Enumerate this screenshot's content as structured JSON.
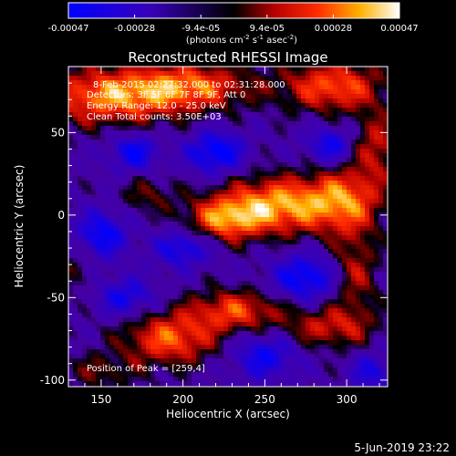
{
  "chart_data": {
    "type": "heatmap",
    "title": "Reconstructed RHESSI Image",
    "xlabel": "Heliocentric X (arcsec)",
    "ylabel": "Heliocentric Y (arcsec)",
    "xlim": [
      130,
      325
    ],
    "ylim": [
      -104,
      90
    ],
    "xticks": [
      150,
      200,
      250,
      300
    ],
    "yticks": [
      -100,
      -50,
      0,
      50
    ],
    "colorbar": {
      "ticks": [
        "-0.00047",
        "-0.00028",
        "-9.4e-05",
        "9.4e-05",
        "0.00028",
        "0.00047"
      ],
      "range": [
        -0.00047,
        0.00047
      ],
      "label_parts": [
        "(photons cm",
        "-2",
        " s",
        "-1",
        " asec",
        "-2",
        ")"
      ]
    },
    "annotations": [
      "8-Feb-2015 02:27:32.000 to 02:31:28.000",
      "Detectors: 3F 5F 6F 7F 8F 9F, Att 0",
      "Energy Range: 12.0 - 25.0 keV",
      "Clean    Total counts: 3.50E+03"
    ],
    "peak_label": "Position of Peak = [259,4]",
    "peak": [
      259,
      4
    ],
    "sources": [
      {
        "x": 155,
        "y": 72,
        "amp": 0.00042,
        "sx": 30,
        "sy": 12
      },
      {
        "x": 205,
        "y": 78,
        "amp": 0.00036,
        "sx": 26,
        "sy": 10
      },
      {
        "x": 292,
        "y": 78,
        "amp": 0.00038,
        "sx": 22,
        "sy": 11
      },
      {
        "x": 318,
        "y": 42,
        "amp": 0.00026,
        "sx": 10,
        "sy": 14
      },
      {
        "x": 259,
        "y": 6,
        "amp": 0.00047,
        "sx": 26,
        "sy": 12
      },
      {
        "x": 225,
        "y": -3,
        "amp": 0.00036,
        "sx": 16,
        "sy": 9
      },
      {
        "x": 300,
        "y": 10,
        "amp": 0.00032,
        "sx": 16,
        "sy": 14
      },
      {
        "x": 178,
        "y": 12,
        "amp": 0.00016,
        "sx": 12,
        "sy": 8
      },
      {
        "x": 305,
        "y": -35,
        "amp": 0.00024,
        "sx": 10,
        "sy": 20
      },
      {
        "x": 288,
        "y": -68,
        "amp": 0.00026,
        "sx": 20,
        "sy": 9
      },
      {
        "x": 232,
        "y": -58,
        "amp": 0.00034,
        "sx": 20,
        "sy": 9
      },
      {
        "x": 192,
        "y": -75,
        "amp": 0.00038,
        "sx": 20,
        "sy": 11
      },
      {
        "x": 150,
        "y": -95,
        "amp": 0.00016,
        "sx": 16,
        "sy": 8
      },
      {
        "x": 135,
        "y": -32,
        "amp": 0.00012,
        "sx": 8,
        "sy": 12
      },
      {
        "x": 220,
        "y": 38,
        "amp": -0.00038,
        "sx": 12,
        "sy": 9
      },
      {
        "x": 170,
        "y": 38,
        "amp": -0.00032,
        "sx": 10,
        "sy": 8
      },
      {
        "x": 290,
        "y": 42,
        "amp": -0.0003,
        "sx": 10,
        "sy": 8
      },
      {
        "x": 150,
        "y": -12,
        "amp": -0.00034,
        "sx": 11,
        "sy": 10
      },
      {
        "x": 200,
        "y": -20,
        "amp": -0.0003,
        "sx": 12,
        "sy": 8
      },
      {
        "x": 275,
        "y": -38,
        "amp": -0.00036,
        "sx": 14,
        "sy": 10
      },
      {
        "x": 250,
        "y": -85,
        "amp": -0.0003,
        "sx": 14,
        "sy": 10
      },
      {
        "x": 165,
        "y": -50,
        "amp": -0.00028,
        "sx": 12,
        "sy": 8
      },
      {
        "x": 315,
        "y": -95,
        "amp": -0.00026,
        "sx": 8,
        "sy": 8
      }
    ]
  },
  "footer": {
    "date": "5-Jun-2019 23:22"
  }
}
